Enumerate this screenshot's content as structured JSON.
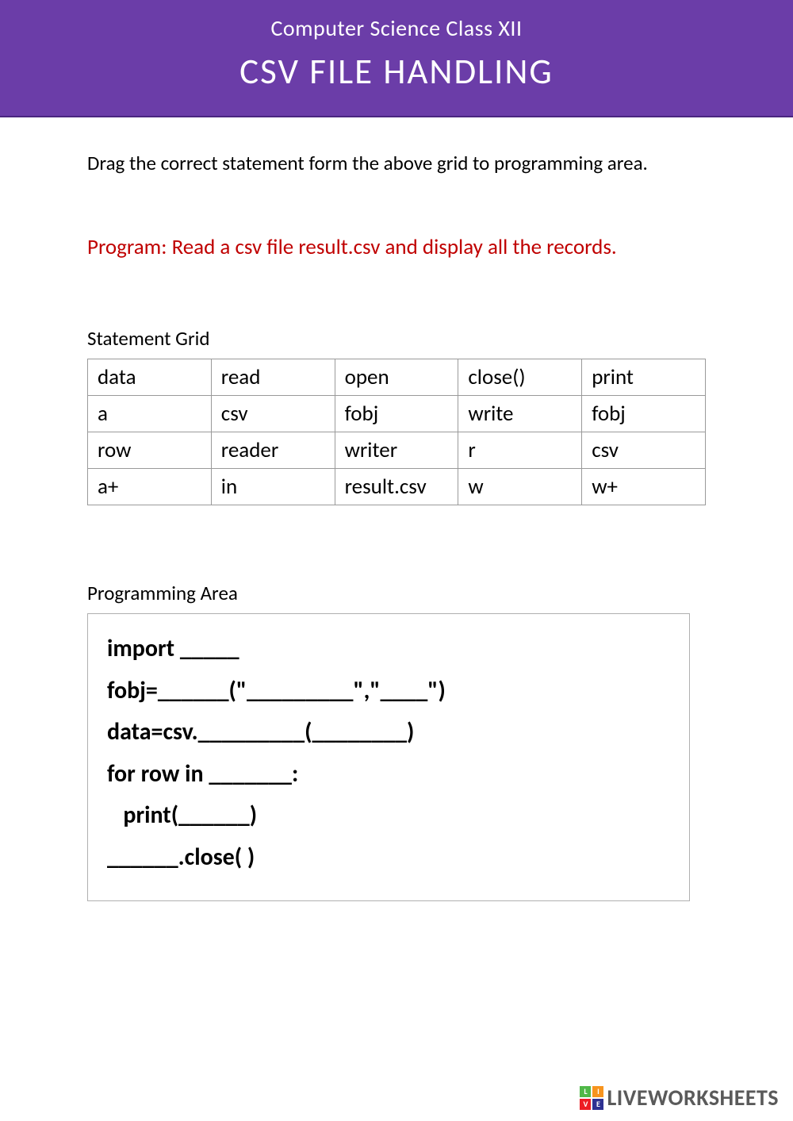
{
  "header": {
    "subtitle": "Computer Science Class XII",
    "title": "CSV FILE HANDLING",
    "bg_color": "#6b3da8",
    "text_color": "#ffffff"
  },
  "instruction": "Drag the correct statement form the above grid to programming area.",
  "program": "Program:  Read a csv file result.csv and display all the records.",
  "program_color": "#c00000",
  "statement_grid": {
    "label": "Statement Grid",
    "type": "table",
    "columns": 5,
    "rows": [
      [
        "data",
        "read",
        "open",
        "close()",
        "print"
      ],
      [
        "a",
        "csv",
        "fobj",
        "write",
        "fobj"
      ],
      [
        "row",
        "reader",
        "writer",
        "r",
        "csv"
      ],
      [
        "a+",
        "in",
        "result.csv",
        "w",
        "w+"
      ]
    ],
    "border_color": "#9a9a9a",
    "cell_fontsize": 27
  },
  "programming_area": {
    "label": "Programming Area",
    "lines": [
      "import _____",
      "fobj=______(\"_________\",\"____\")",
      "data=csv._________(________)",
      "for row in _______:",
      "   print(______)",
      "______.close( )"
    ],
    "border_color": "#b0b0b0",
    "fontsize": 30
  },
  "footer": {
    "logo_text": "LIVEWORKSHEETS",
    "logo_colors": {
      "L": "#50b848",
      "I": "#f7941e",
      "V": "#ed1c24",
      "E": "#2e3192"
    }
  }
}
